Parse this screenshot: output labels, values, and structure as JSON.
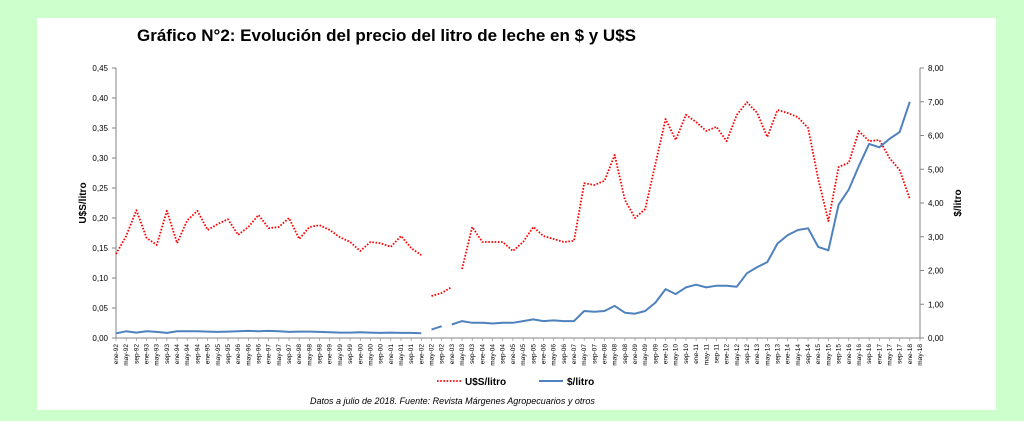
{
  "chart_data": {
    "type": "line",
    "title": "Gráfico N°2: Evolución del precio del litro de leche en $ y U$S",
    "ylabel_left": "U$S/litro",
    "ylabel_right": "$/litro",
    "ylim_left": [
      0,
      0.45
    ],
    "ylim_right": [
      0,
      8
    ],
    "yticks_left": [
      "0,00",
      "0,05",
      "0,10",
      "0,15",
      "0,20",
      "0,25",
      "0,30",
      "0,35",
      "0,40",
      "0,45"
    ],
    "yticks_right": [
      "0,00",
      "1,00",
      "2,00",
      "3,00",
      "4,00",
      "5,00",
      "6,00",
      "7,00",
      "8,00"
    ],
    "xtick_labels": [
      "ene-92",
      "may-92",
      "sep-92",
      "ene-93",
      "may-93",
      "sep-93",
      "ene-94",
      "may-94",
      "sep-94",
      "ene-95",
      "may-95",
      "sep-95",
      "ene-96",
      "may-96",
      "sep-96",
      "ene-97",
      "may-97",
      "sep-97",
      "ene-98",
      "may-98",
      "sep-98",
      "ene-99",
      "may-99",
      "sep-99",
      "ene-00",
      "may-00",
      "sep-00",
      "ene-01",
      "may-01",
      "sep-01",
      "ene-02",
      "may-02",
      "sep-02",
      "ene-03",
      "may-03",
      "sep-03",
      "ene-04",
      "may-04",
      "sep-04",
      "ene-05",
      "may-05",
      "sep-05",
      "ene-06",
      "may-06",
      "sep-06",
      "ene-07",
      "may-07",
      "sep-07",
      "ene-08",
      "may-08",
      "sep-08",
      "ene-09",
      "may-09",
      "sep-09",
      "ene-10",
      "may-10",
      "sep-10",
      "ene-11",
      "may-11",
      "sep-11",
      "ene-12",
      "may-12",
      "sep-12",
      "ene-13",
      "may-13",
      "sep-13",
      "ene-14",
      "may-14",
      "sep-14",
      "ene-15",
      "may-15",
      "sep-15",
      "ene-16",
      "may-16",
      "sep-16",
      "ene-17",
      "may-17",
      "sep-17",
      "ene-18",
      "may-18"
    ],
    "series": [
      {
        "name": "U$S/litro",
        "axis": "left",
        "color": "#ff0000",
        "style": "dotted",
        "segments": [
          [
            [
              "ene-92",
              0.14
            ],
            [
              "may-92",
              0.17
            ],
            [
              "sep-92",
              0.213
            ],
            [
              "ene-93",
              0.167
            ],
            [
              "may-93",
              0.155
            ],
            [
              "sep-93",
              0.212
            ],
            [
              "ene-94",
              0.158
            ],
            [
              "may-94",
              0.196
            ],
            [
              "sep-94",
              0.212
            ],
            [
              "ene-95",
              0.18
            ],
            [
              "may-95",
              0.19
            ],
            [
              "sep-95",
              0.198
            ],
            [
              "ene-96",
              0.172
            ],
            [
              "may-96",
              0.185
            ],
            [
              "sep-96",
              0.205
            ],
            [
              "ene-97",
              0.183
            ],
            [
              "may-97",
              0.185
            ],
            [
              "sep-97",
              0.2
            ],
            [
              "ene-98",
              0.165
            ],
            [
              "may-98",
              0.185
            ],
            [
              "sep-98",
              0.188
            ],
            [
              "ene-99",
              0.18
            ],
            [
              "may-99",
              0.168
            ],
            [
              "sep-99",
              0.16
            ],
            [
              "ene-00",
              0.145
            ],
            [
              "may-00",
              0.16
            ],
            [
              "sep-00",
              0.158
            ],
            [
              "ene-01",
              0.152
            ],
            [
              "may-01",
              0.17
            ],
            [
              "sep-01",
              0.15
            ],
            [
              "ene-02",
              0.138
            ]
          ],
          [
            [
              "may-02",
              0.07
            ],
            [
              "sep-02",
              0.075
            ],
            [
              "ene-03",
              0.085
            ]
          ],
          [
            [
              "may-03",
              0.115
            ],
            [
              "sep-03",
              0.185
            ],
            [
              "ene-04",
              0.16
            ],
            [
              "may-04",
              0.16
            ],
            [
              "sep-04",
              0.16
            ],
            [
              "ene-05",
              0.145
            ],
            [
              "may-05",
              0.16
            ],
            [
              "sep-05",
              0.185
            ],
            [
              "ene-06",
              0.17
            ],
            [
              "may-06",
              0.165
            ],
            [
              "sep-06",
              0.16
            ],
            [
              "ene-07",
              0.162
            ],
            [
              "may-07",
              0.258
            ],
            [
              "sep-07",
              0.255
            ],
            [
              "ene-08",
              0.262
            ],
            [
              "may-08",
              0.305
            ],
            [
              "sep-08",
              0.23
            ],
            [
              "ene-09",
              0.2
            ],
            [
              "may-09",
              0.215
            ],
            [
              "sep-09",
              0.29
            ],
            [
              "ene-10",
              0.365
            ],
            [
              "may-10",
              0.33
            ],
            [
              "sep-10",
              0.372
            ],
            [
              "ene-11",
              0.36
            ],
            [
              "may-11",
              0.345
            ],
            [
              "sep-11",
              0.352
            ],
            [
              "ene-12",
              0.328
            ],
            [
              "may-12",
              0.372
            ],
            [
              "sep-12",
              0.393
            ],
            [
              "ene-13",
              0.375
            ],
            [
              "may-13",
              0.335
            ],
            [
              "sep-13",
              0.38
            ],
            [
              "ene-14",
              0.375
            ],
            [
              "may-14",
              0.368
            ],
            [
              "sep-14",
              0.35
            ],
            [
              "ene-15",
              0.265
            ],
            [
              "may-15",
              0.195
            ],
            [
              "sep-15",
              0.285
            ],
            [
              "ene-16",
              0.292
            ],
            [
              "may-16",
              0.345
            ],
            [
              "sep-16",
              0.328
            ],
            [
              "ene-17",
              0.33
            ],
            [
              "may-17",
              0.3
            ],
            [
              "sep-17",
              0.28
            ],
            [
              "ene-18",
              0.232
            ]
          ]
        ]
      },
      {
        "name": "$/litro",
        "axis": "right",
        "color": "#4f81bd",
        "style": "solid",
        "segments": [
          [
            [
              "ene-92",
              0.14
            ],
            [
              "may-92",
              0.2
            ],
            [
              "sep-92",
              0.16
            ],
            [
              "ene-93",
              0.2
            ],
            [
              "may-93",
              0.18
            ],
            [
              "sep-93",
              0.15
            ],
            [
              "ene-94",
              0.2
            ],
            [
              "may-94",
              0.2
            ],
            [
              "sep-94",
              0.2
            ],
            [
              "ene-95",
              0.19
            ],
            [
              "may-95",
              0.18
            ],
            [
              "sep-95",
              0.19
            ],
            [
              "ene-96",
              0.2
            ],
            [
              "may-96",
              0.21
            ],
            [
              "sep-96",
              0.2
            ],
            [
              "ene-97",
              0.21
            ],
            [
              "may-97",
              0.2
            ],
            [
              "sep-97",
              0.18
            ],
            [
              "ene-98",
              0.19
            ],
            [
              "may-98",
              0.19
            ],
            [
              "sep-98",
              0.18
            ],
            [
              "ene-99",
              0.17
            ],
            [
              "may-99",
              0.16
            ],
            [
              "sep-99",
              0.16
            ],
            [
              "ene-00",
              0.17
            ],
            [
              "may-00",
              0.16
            ],
            [
              "sep-00",
              0.15
            ],
            [
              "ene-01",
              0.16
            ],
            [
              "may-01",
              0.15
            ],
            [
              "sep-01",
              0.15
            ],
            [
              "ene-02",
              0.14
            ]
          ],
          [
            [
              "may-02",
              0.25
            ],
            [
              "sep-02",
              0.35
            ]
          ],
          [
            [
              "ene-03",
              0.4
            ],
            [
              "may-03",
              0.5
            ],
            [
              "sep-03",
              0.45
            ],
            [
              "ene-04",
              0.45
            ],
            [
              "may-04",
              0.43
            ],
            [
              "sep-04",
              0.45
            ],
            [
              "ene-05",
              0.45
            ],
            [
              "may-05",
              0.5
            ],
            [
              "sep-05",
              0.55
            ],
            [
              "ene-06",
              0.5
            ],
            [
              "may-06",
              0.52
            ],
            [
              "sep-06",
              0.5
            ],
            [
              "ene-07",
              0.5
            ],
            [
              "may-07",
              0.8
            ],
            [
              "sep-07",
              0.78
            ],
            [
              "ene-08",
              0.8
            ],
            [
              "may-08",
              0.95
            ],
            [
              "sep-08",
              0.75
            ],
            [
              "ene-09",
              0.72
            ],
            [
              "may-09",
              0.8
            ],
            [
              "sep-09",
              1.05
            ],
            [
              "ene-10",
              1.45
            ],
            [
              "may-10",
              1.3
            ],
            [
              "sep-10",
              1.5
            ],
            [
              "ene-11",
              1.58
            ],
            [
              "may-11",
              1.5
            ],
            [
              "sep-11",
              1.55
            ],
            [
              "ene-12",
              1.55
            ],
            [
              "may-12",
              1.52
            ],
            [
              "sep-12",
              1.92
            ],
            [
              "ene-13",
              2.1
            ],
            [
              "may-13",
              2.25
            ],
            [
              "sep-13",
              2.8
            ],
            [
              "ene-14",
              3.05
            ],
            [
              "may-14",
              3.2
            ],
            [
              "sep-14",
              3.25
            ],
            [
              "ene-15",
              2.7
            ],
            [
              "may-15",
              2.6
            ],
            [
              "sep-15",
              3.95
            ],
            [
              "ene-16",
              4.4
            ],
            [
              "may-16",
              5.1
            ],
            [
              "sep-16",
              5.75
            ],
            [
              "ene-17",
              5.65
            ],
            [
              "may-17",
              5.9
            ],
            [
              "sep-17",
              6.1
            ],
            [
              "ene-18",
              7.0
            ]
          ]
        ]
      }
    ],
    "legend_position": "bottom",
    "grid": false
  },
  "source_note": "Datos a julio de 2018. Fuente: Revista Márgenes Agropecuarios y otros"
}
